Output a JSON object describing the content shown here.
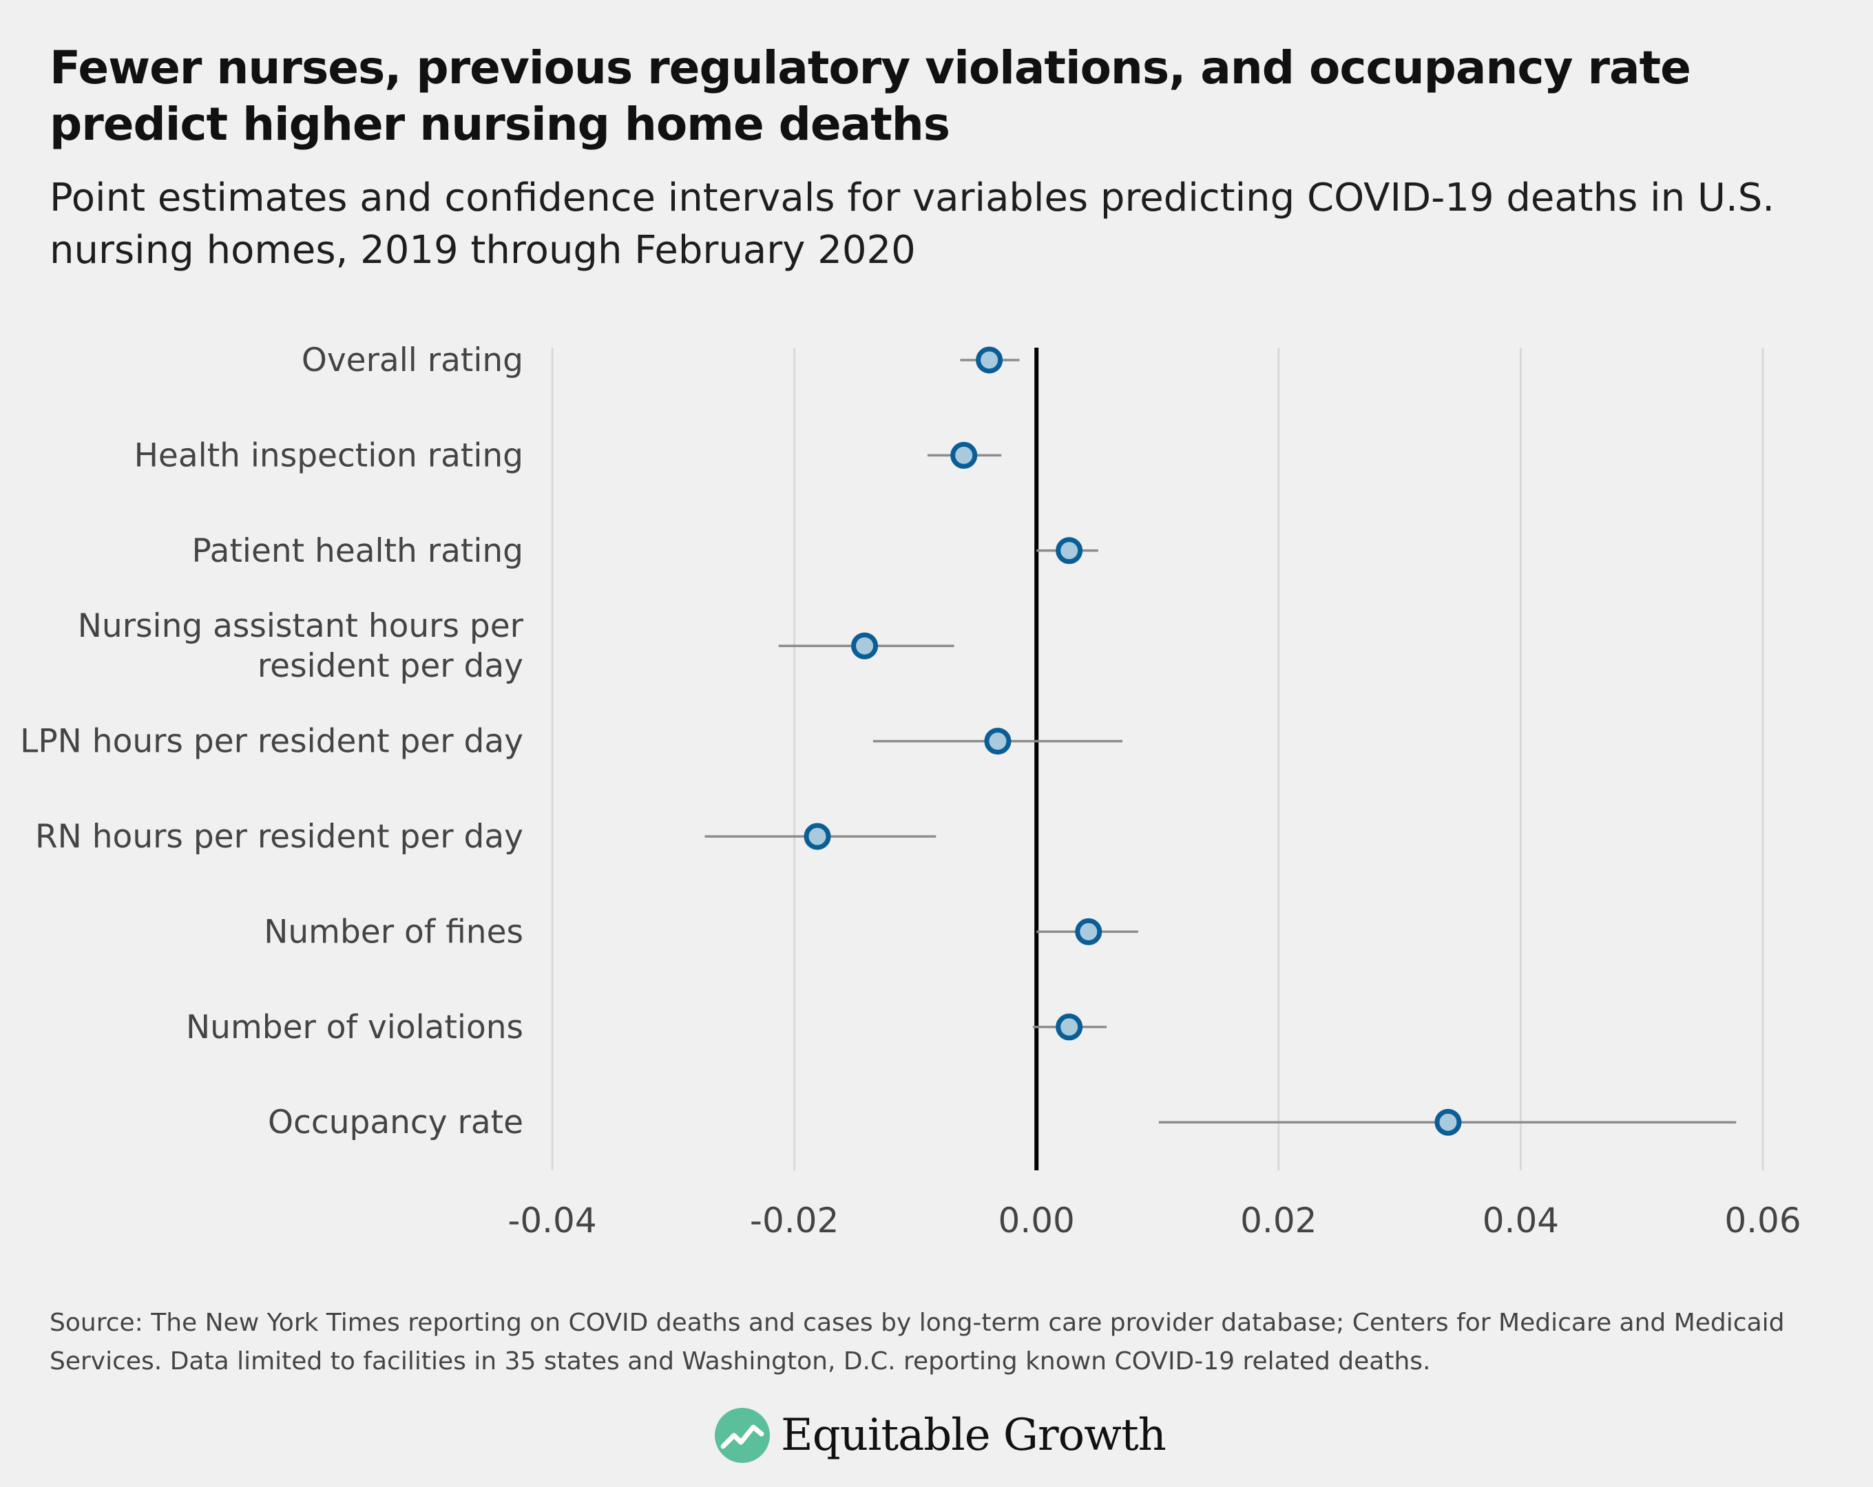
{
  "header": {
    "title": "Fewer nurses, previous regulatory violations, and occupancy rate predict higher nursing home deaths",
    "subtitle": "Point estimates and confidence intervals for variables predicting COVID-19 deaths in U.S. nursing homes, 2019 through February 2020"
  },
  "chart_data": {
    "type": "scatter",
    "subtype": "point-estimate-with-confidence-interval",
    "title": "Fewer nurses, previous regulatory violations, and occupancy rate predict higher nursing home deaths",
    "subtitle": "Point estimates and confidence intervals for variables predicting COVID-19 deaths in U.S. nursing homes, 2019 through February 2020",
    "xlabel": "",
    "ylabel": "",
    "xlim": [
      -0.04,
      0.06
    ],
    "x_ticks": [
      -0.04,
      -0.02,
      0.0,
      0.02,
      0.04,
      0.06
    ],
    "x_tick_labels": [
      "-0.04",
      "-0.02",
      "0.00",
      "0.02",
      "0.04",
      "0.06"
    ],
    "zero_line": 0,
    "grid": "vertical",
    "categories": [
      [
        "Overall rating"
      ],
      [
        "Health inspection rating"
      ],
      [
        "Patient health rating"
      ],
      [
        "Nursing assistant hours per",
        "resident per day"
      ],
      [
        "LPN hours per resident per day"
      ],
      [
        "RN hours per resident per day"
      ],
      [
        "Number of fines"
      ],
      [
        "Number of violations"
      ],
      [
        "Occupancy rate"
      ]
    ],
    "estimates": [
      -0.0039,
      -0.006,
      0.0027,
      -0.0142,
      -0.0032,
      -0.0181,
      0.0043,
      0.0027,
      0.034
    ],
    "ci_low": [
      -0.0063,
      -0.009,
      0.0,
      -0.0213,
      -0.0135,
      -0.0274,
      0.0,
      -0.0003,
      0.0101
    ],
    "ci_high": [
      -0.0014,
      -0.0029,
      0.0051,
      -0.0068,
      0.0071,
      -0.0083,
      0.0084,
      0.0058,
      0.0578
    ],
    "colors": {
      "point_fill": "#a9c9dd",
      "point_stroke": "#0b5e95",
      "interval": "#8c8c8c",
      "zero_line": "#000000",
      "grid": "#d9d9d9"
    }
  },
  "footer": {
    "source": "Source: The New York Times reporting on COVID deaths and cases by long-term care provider database; Centers for Medicare and Medicaid Services. Data limited to facilities in 35 states and Washington, D.C. reporting known COVID-19 related deaths."
  },
  "brand": {
    "name": "Equitable Growth",
    "logo_icon": "growth-chart-logo-icon",
    "logo_color": "#5bbf9b"
  }
}
